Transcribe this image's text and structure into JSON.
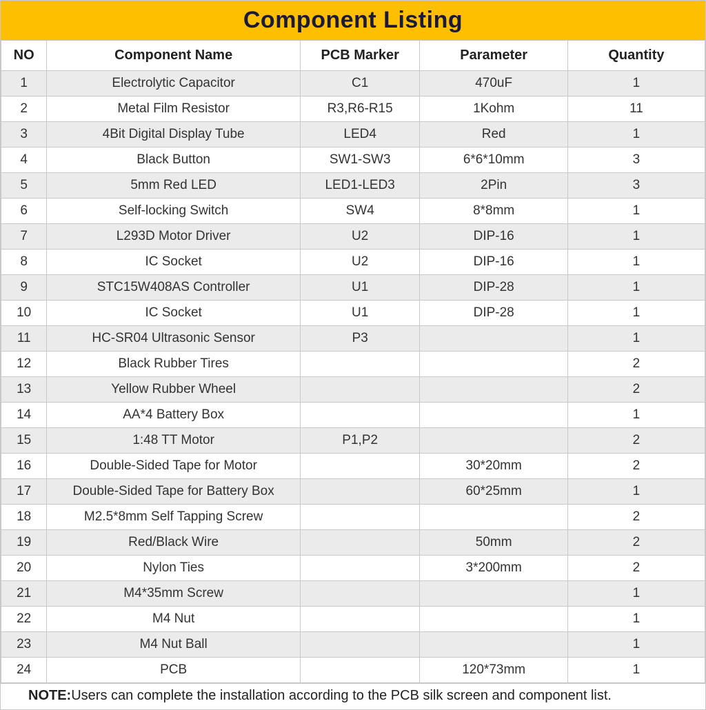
{
  "title": "Component Listing",
  "columns": [
    "NO",
    "Component Name",
    "PCB Marker",
    "Parameter",
    "Quantity"
  ],
  "col_widths_pct": [
    6.5,
    36,
    17,
    21,
    19.5
  ],
  "colors": {
    "header_bg": "#fdbf00",
    "header_text": "#1a1a3a",
    "row_odd_bg": "#ebebeb",
    "row_even_bg": "#ffffff",
    "border": "#c8c8c8",
    "text": "#333333"
  },
  "fonts": {
    "title_size_pt": 26,
    "header_size_pt": 15,
    "cell_size_pt": 14,
    "note_size_pt": 15,
    "family": "Arial"
  },
  "rows": [
    {
      "no": "1",
      "name": "Electrolytic Capacitor",
      "pcb": "C1",
      "param": "470uF",
      "qty": "1"
    },
    {
      "no": "2",
      "name": "Metal Film Resistor",
      "pcb": "R3,R6-R15",
      "param": "1Kohm",
      "qty": "11"
    },
    {
      "no": "3",
      "name": "4Bit Digital Display Tube",
      "pcb": "LED4",
      "param": "Red",
      "qty": "1"
    },
    {
      "no": "4",
      "name": "Black Button",
      "pcb": "SW1-SW3",
      "param": "6*6*10mm",
      "qty": "3"
    },
    {
      "no": "5",
      "name": "5mm Red LED",
      "pcb": "LED1-LED3",
      "param": "2Pin",
      "qty": "3"
    },
    {
      "no": "6",
      "name": "Self-locking Switch",
      "pcb": "SW4",
      "param": "8*8mm",
      "qty": "1"
    },
    {
      "no": "7",
      "name": "L293D Motor Driver",
      "pcb": "U2",
      "param": "DIP-16",
      "qty": "1"
    },
    {
      "no": "8",
      "name": "IC Socket",
      "pcb": "U2",
      "param": "DIP-16",
      "qty": "1"
    },
    {
      "no": "9",
      "name": "STC15W408AS Controller",
      "pcb": "U1",
      "param": "DIP-28",
      "qty": "1"
    },
    {
      "no": "10",
      "name": "IC Socket",
      "pcb": "U1",
      "param": "DIP-28",
      "qty": "1"
    },
    {
      "no": "11",
      "name": "HC-SR04 Ultrasonic Sensor",
      "pcb": "P3",
      "param": "",
      "qty": "1"
    },
    {
      "no": "12",
      "name": "Black Rubber Tires",
      "pcb": "",
      "param": "",
      "qty": "2"
    },
    {
      "no": "13",
      "name": "Yellow Rubber Wheel",
      "pcb": "",
      "param": "",
      "qty": "2"
    },
    {
      "no": "14",
      "name": "AA*4 Battery Box",
      "pcb": "",
      "param": "",
      "qty": "1"
    },
    {
      "no": "15",
      "name": "1:48 TT Motor",
      "pcb": "P1,P2",
      "param": "",
      "qty": "2"
    },
    {
      "no": "16",
      "name": "Double-Sided Tape for Motor",
      "pcb": "",
      "param": "30*20mm",
      "qty": "2"
    },
    {
      "no": "17",
      "name": "Double-Sided Tape for Battery Box",
      "pcb": "",
      "param": "60*25mm",
      "qty": "1"
    },
    {
      "no": "18",
      "name": "M2.5*8mm Self Tapping Screw",
      "pcb": "",
      "param": "",
      "qty": "2"
    },
    {
      "no": "19",
      "name": "Red/Black Wire",
      "pcb": "",
      "param": "50mm",
      "qty": "2"
    },
    {
      "no": "20",
      "name": "Nylon Ties",
      "pcb": "",
      "param": "3*200mm",
      "qty": "2"
    },
    {
      "no": "21",
      "name": "M4*35mm Screw",
      "pcb": "",
      "param": "",
      "qty": "1"
    },
    {
      "no": "22",
      "name": "M4 Nut",
      "pcb": "",
      "param": "",
      "qty": "1"
    },
    {
      "no": "23",
      "name": "M4 Nut Ball",
      "pcb": "",
      "param": "",
      "qty": "1"
    },
    {
      "no": "24",
      "name": "PCB",
      "pcb": "",
      "param": "120*73mm",
      "qty": "1"
    }
  ],
  "note_label": "NOTE:",
  "note_text": "Users can complete the installation according to the PCB silk screen and component list."
}
